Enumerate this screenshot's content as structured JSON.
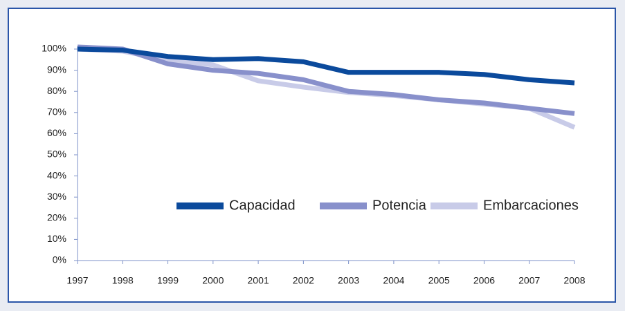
{
  "chart_data": {
    "type": "line",
    "categories": [
      "1997",
      "1998",
      "1999",
      "2000",
      "2001",
      "2002",
      "2003",
      "2004",
      "2005",
      "2006",
      "2007",
      "2008"
    ],
    "series": [
      {
        "name": "Capacidad",
        "color": "#0b4a9c",
        "values": [
          100,
          99.5,
          96.5,
          95,
          95.5,
          94,
          89,
          89,
          89,
          88,
          85.5,
          84
        ]
      },
      {
        "name": "Potencia",
        "color": "#8890cb",
        "values": [
          101,
          100,
          93,
          90,
          88.5,
          85.5,
          80,
          78.5,
          76,
          74.5,
          72,
          69.5
        ]
      },
      {
        "name": "Embarcaciones",
        "color": "#c8cbe8",
        "values": [
          100,
          99,
          95,
          92.5,
          85,
          82,
          79.5,
          78,
          76,
          74,
          72,
          63
        ]
      }
    ],
    "ylim": [
      0,
      100
    ],
    "yticks": [
      {
        "value": 0,
        "label": "0%"
      },
      {
        "value": 10,
        "label": "10%"
      },
      {
        "value": 20,
        "label": "20%"
      },
      {
        "value": 30,
        "label": "30%"
      },
      {
        "value": 40,
        "label": "40%"
      },
      {
        "value": 50,
        "label": "50%"
      },
      {
        "value": 60,
        "label": "60%"
      },
      {
        "value": 70,
        "label": "70%"
      },
      {
        "value": 80,
        "label": "80%"
      },
      {
        "value": 90,
        "label": "90%"
      },
      {
        "value": 100,
        "label": "100%"
      }
    ],
    "grid": false
  }
}
